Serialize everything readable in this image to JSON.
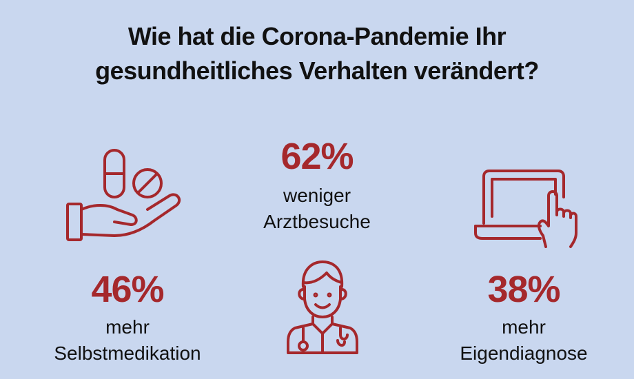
{
  "title": {
    "line1": "Wie hat die Corona-Pandemie Ihr",
    "line2": "gesundheitliches Verhalten verändert?"
  },
  "stats": [
    {
      "value": "62%",
      "line1": "weniger",
      "line2": "Arztbesuche"
    },
    {
      "value": "46%",
      "line1": "mehr",
      "line2": "Selbstmedikation"
    },
    {
      "value": "38%",
      "line1": "mehr",
      "line2": "Eigendiagnose"
    }
  ],
  "icons": [
    "pills-hand-icon",
    "doctor-icon",
    "laptop-touch-icon"
  ],
  "colors": {
    "background": "#c9d7ef",
    "accent": "#a5282c",
    "text": "#111111"
  }
}
